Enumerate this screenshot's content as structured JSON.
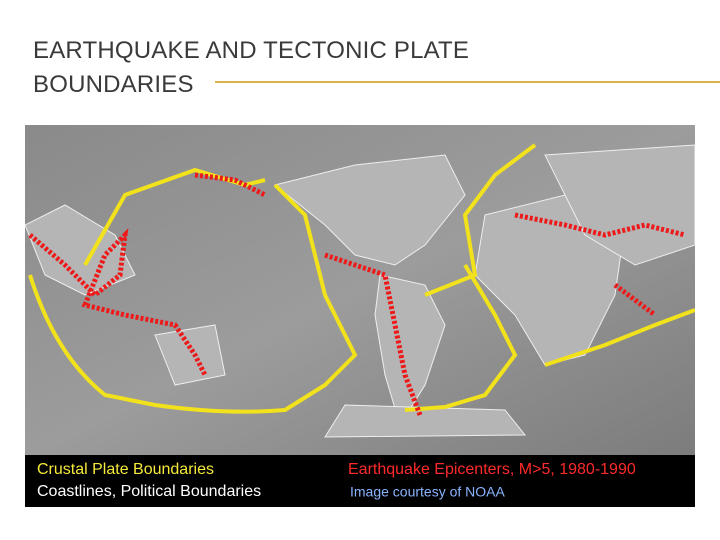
{
  "header": {
    "title": "EARTHQUAKE AND TECTONIC PLATE BOUNDARIES"
  },
  "legend": {
    "plate_boundaries": "Crustal Plate Boundaries",
    "coastlines": "Coastlines, Political Boundaries",
    "epicenters": "Earthquake Epicenters, M>5, 1980-1990",
    "credit": "Image courtesy of NOAA"
  }
}
